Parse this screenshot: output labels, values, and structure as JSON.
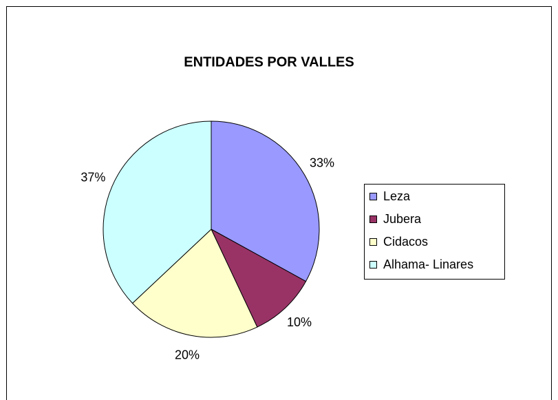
{
  "chart_data": {
    "type": "pie",
    "title": "ENTIDADES POR VALLES",
    "categories": [
      "Leza",
      "Jubera",
      "Cidacos",
      "Alhama- Linares"
    ],
    "values": [
      33,
      10,
      20,
      37
    ],
    "value_labels": [
      "33%",
      "10%",
      "20%",
      "37%"
    ],
    "colors": [
      "#9999ff",
      "#993366",
      "#ffffcc",
      "#ccffff"
    ],
    "legend": "right"
  }
}
